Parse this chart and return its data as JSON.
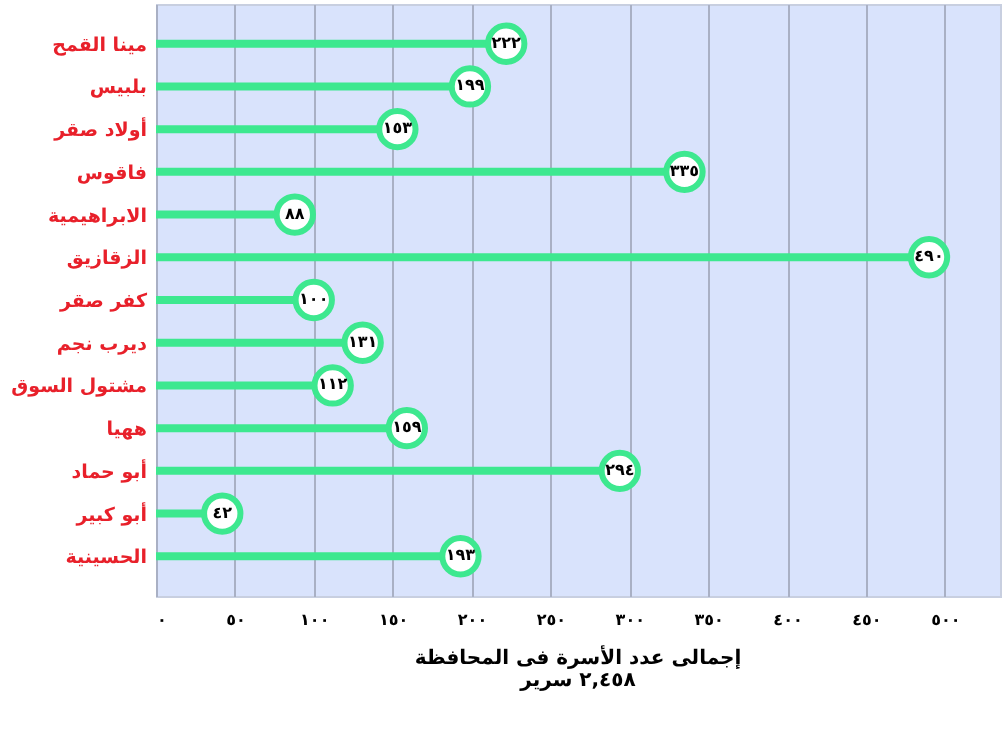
{
  "chart_data": {
    "type": "lollipop",
    "orientation": "horizontal",
    "title": "إجمالى عدد الأسرة فى المحافظة",
    "subtitle": "٢,٤٥٨ سرير",
    "categories": [
      "مينا القمح",
      "بلبيس",
      "أولاد صقر",
      "فاقوس",
      "الابراهيمية",
      "الزقازيق",
      "كفر صقر",
      "ديرب نجم",
      "مشتول السوق",
      "ههيا",
      "أبو حماد",
      "أبو كبير",
      "الحسينية"
    ],
    "values": [
      222,
      199,
      153,
      335,
      88,
      490,
      100,
      131,
      112,
      159,
      294,
      42,
      193
    ],
    "value_labels": [
      "٢٢٢",
      "١٩٩",
      "١٥٣",
      "٣٣٥",
      "٨٨",
      "٤٩٠",
      "١٠٠",
      "١٣١",
      "١١٢",
      "١٥٩",
      "٢٩٤",
      "٤٢",
      "١٩٣"
    ],
    "color": "#3de88f",
    "xlim": [
      0,
      535
    ],
    "xticks": [
      {
        "value": 0,
        "label": "٠"
      },
      {
        "value": 50,
        "label": "٥٠"
      },
      {
        "value": 100,
        "label": "١٠٠"
      },
      {
        "value": 150,
        "label": "١٥٠"
      },
      {
        "value": 200,
        "label": "٢٠٠"
      },
      {
        "value": 250,
        "label": "٢٥٠"
      },
      {
        "value": 300,
        "label": "٣٠٠"
      },
      {
        "value": 350,
        "label": "٣٥٠"
      },
      {
        "value": 400,
        "label": "٤٠٠"
      },
      {
        "value": 450,
        "label": "٤٥٠"
      },
      {
        "value": 500,
        "label": "٥٠٠"
      }
    ],
    "grid": "x",
    "marker": "circle"
  }
}
